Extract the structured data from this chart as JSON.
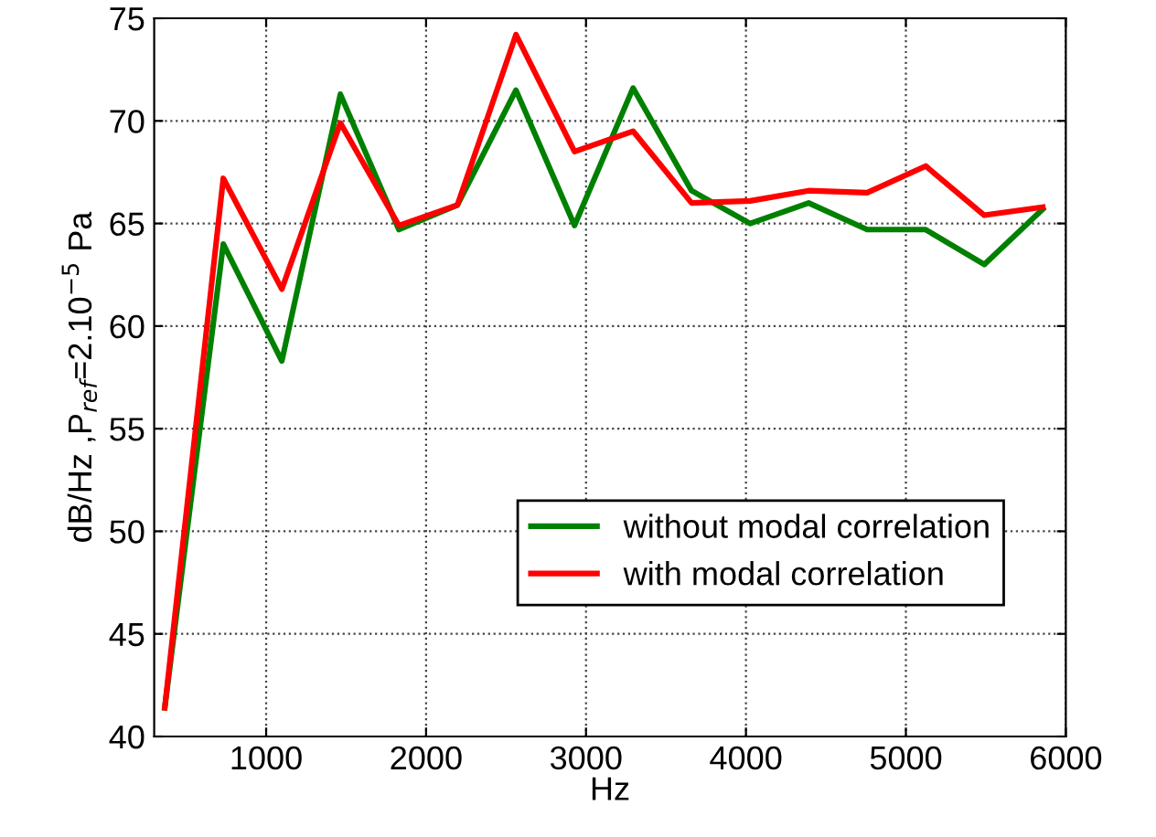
{
  "chart_data": {
    "type": "line",
    "xlabel": "Hz",
    "ylabel": "dB/Hz ,P$_{ref}$=2.10$^{−5}$ Pa",
    "x": [
      366,
      732,
      1098,
      1464,
      1830,
      2196,
      2562,
      2928,
      3294,
      3660,
      4026,
      4392,
      4758,
      5124,
      5490,
      5856
    ],
    "series": [
      {
        "name": "without modal correlation",
        "color": "#008000",
        "values": [
          41.4,
          64.0,
          58.3,
          71.3,
          64.7,
          65.9,
          71.5,
          64.9,
          71.6,
          66.6,
          65.0,
          66.0,
          64.7,
          64.7,
          63.0,
          65.7
        ]
      },
      {
        "name": "with modal correlation",
        "color": "#ff0000",
        "values": [
          41.4,
          67.2,
          61.8,
          69.9,
          64.9,
          65.9,
          74.2,
          68.5,
          69.5,
          66.0,
          66.1,
          66.6,
          66.5,
          67.8,
          65.4,
          65.8
        ]
      }
    ],
    "xlim": [
      300,
      6000
    ],
    "xticks": [
      1000,
      2000,
      3000,
      4000,
      5000,
      6000
    ],
    "ylim": [
      40,
      75
    ],
    "yticks": [
      40,
      45,
      50,
      55,
      60,
      65,
      70,
      75
    ],
    "grid": true,
    "legend": "bottom right",
    "line_style": "solid",
    "marker": "none"
  }
}
